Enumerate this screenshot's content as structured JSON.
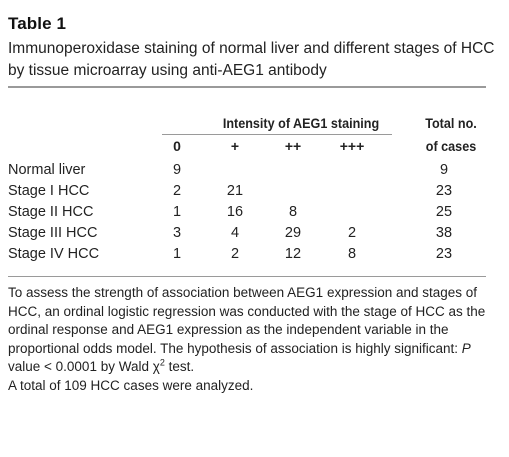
{
  "table_label": "Table 1",
  "caption": "Immunoperoxidase staining of normal liver and different stages of HCC by tissue microarray using anti-AEG1 antibody",
  "header": {
    "group_label": "Intensity of AEG1 staining",
    "total_label_line1": "Total no.",
    "total_label_line2": "of cases",
    "columns": [
      "0",
      "+",
      "++",
      "+++"
    ]
  },
  "rows": [
    {
      "label": "Normal liver",
      "c0": "9",
      "c1": "",
      "c2": "",
      "c3": "",
      "total": "9"
    },
    {
      "label": "Stage I HCC",
      "c0": "2",
      "c1": "21",
      "c2": "",
      "c3": "",
      "total": "23"
    },
    {
      "label": "Stage II HCC",
      "c0": "1",
      "c1": "16",
      "c2": "8",
      "c3": "",
      "total": "25"
    },
    {
      "label": "Stage III HCC",
      "c0": "3",
      "c1": "4",
      "c2": "29",
      "c3": "2",
      "total": "38"
    },
    {
      "label": "Stage IV HCC",
      "c0": "1",
      "c1": "2",
      "c2": "12",
      "c3": "8",
      "total": "23"
    }
  ],
  "footnote": {
    "text_part1": "To assess the strength of association between AEG1 expression and stages of HCC, an ordinal logistic regression was conducted with the stage of HCC as the ordinal response and AEG1 expression as the independent variable in the proportional odds model. The hypothesis of association is highly significant: ",
    "p_symbol": "P",
    "text_part2": " value < 0.0001 by Wald χ",
    "superscript": "2",
    "text_part3": " test.",
    "line2": "A total of 109 HCC cases were analyzed."
  }
}
